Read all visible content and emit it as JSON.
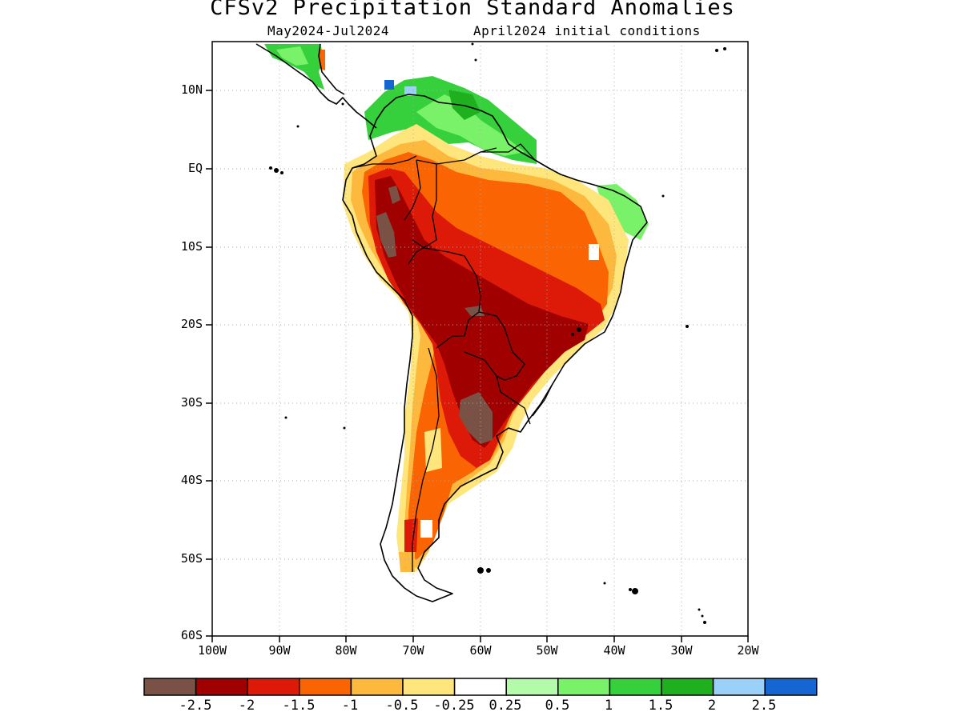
{
  "title": "CFSv2 Precipitation Standard Anomalies",
  "subtitle_period": "May2024-Jul2024",
  "subtitle_ic": "April2024 initial conditions",
  "lat_ticks": [
    "10N",
    "EQ",
    "10S",
    "20S",
    "30S",
    "40S",
    "50S",
    "60S"
  ],
  "lon_ticks": [
    "100W",
    "90W",
    "80W",
    "70W",
    "60W",
    "50W",
    "40W",
    "30W",
    "20W"
  ],
  "colorbar": {
    "colors": [
      "#7a5245",
      "#a10000",
      "#dd1a07",
      "#fb6402",
      "#fdb93e",
      "#fee57c",
      "#ffffff",
      "#b3fbaa",
      "#79f26a",
      "#37d03d",
      "#1eb01f",
      "#9bd0f8",
      "#1566d3"
    ],
    "labels": [
      "-2.5",
      "-2",
      "-1.5",
      "-1",
      "-0.5",
      "-0.25",
      "0.25",
      "0.5",
      "1",
      "1.5",
      "2",
      "2.5"
    ]
  }
}
